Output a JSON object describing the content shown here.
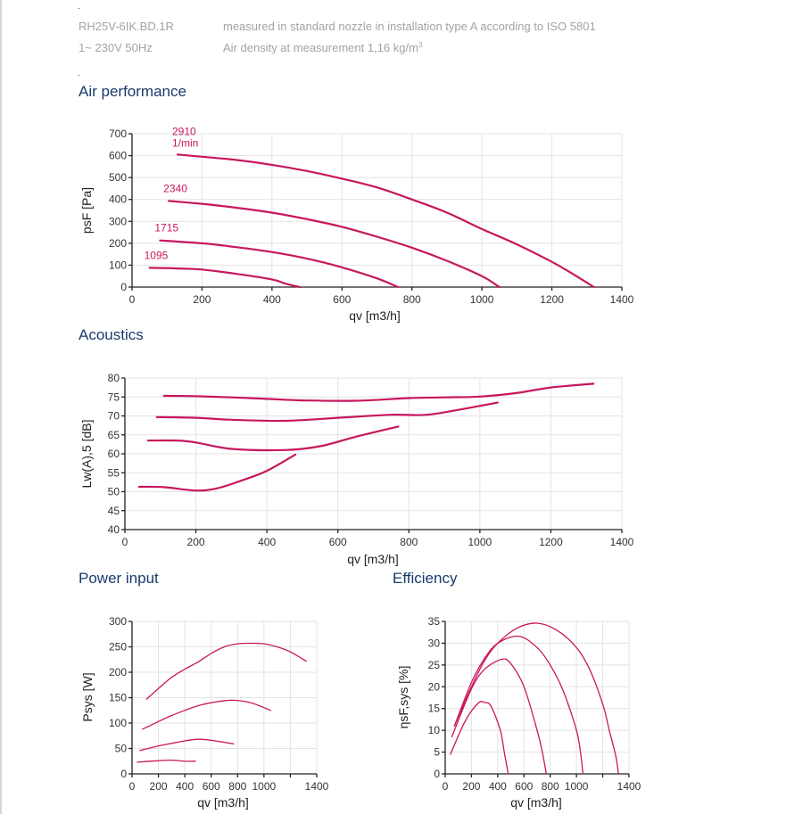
{
  "header": {
    "model": "RH25V-6IK.BD.1R",
    "supply": "1~ 230V 50Hz",
    "measurement_note": "measured in standard nozzle in installation type A according to ISO 5801",
    "air_density_note": "Air density at measurement 1,16 kg/m",
    "air_density_sup": "3"
  },
  "sections": {
    "air_performance": "Air performance",
    "acoustics": "Acoustics",
    "power_input": "Power input",
    "efficiency": "Efficiency"
  },
  "colors": {
    "curve": "#c8175d",
    "title": "#1a3a6e",
    "grid": "#e3e3e3"
  },
  "chart_data": [
    {
      "id": "air_performance",
      "type": "line",
      "title": "Air performance",
      "xlabel": "qv [m3/h]",
      "ylabel": "psF [Pa]",
      "xlim": [
        0,
        1400
      ],
      "ylim": [
        0,
        700
      ],
      "xticks": [
        0,
        200,
        400,
        600,
        800,
        1000,
        1200,
        1400
      ],
      "yticks": [
        0,
        100,
        200,
        300,
        400,
        500,
        600,
        700
      ],
      "grid": true,
      "unit_label": "1/min",
      "series": [
        {
          "name": "2910",
          "points": [
            [
              130,
              605
            ],
            [
              200,
              595
            ],
            [
              300,
              580
            ],
            [
              400,
              558
            ],
            [
              500,
              530
            ],
            [
              600,
              495
            ],
            [
              700,
              455
            ],
            [
              800,
              400
            ],
            [
              900,
              340
            ],
            [
              1000,
              265
            ],
            [
              1100,
              195
            ],
            [
              1200,
              115
            ],
            [
              1260,
              60
            ],
            [
              1320,
              0
            ]
          ]
        },
        {
          "name": "2340",
          "points": [
            [
              105,
              393
            ],
            [
              200,
              380
            ],
            [
              300,
              362
            ],
            [
              400,
              340
            ],
            [
              500,
              310
            ],
            [
              600,
              275
            ],
            [
              700,
              230
            ],
            [
              800,
              180
            ],
            [
              900,
              120
            ],
            [
              1000,
              50
            ],
            [
              1050,
              0
            ]
          ]
        },
        {
          "name": "1715",
          "points": [
            [
              80,
              213
            ],
            [
              200,
              200
            ],
            [
              300,
              182
            ],
            [
              400,
              160
            ],
            [
              500,
              130
            ],
            [
              600,
              90
            ],
            [
              700,
              40
            ],
            [
              760,
              0
            ]
          ]
        },
        {
          "name": "1095",
          "points": [
            [
              50,
              88
            ],
            [
              150,
              84
            ],
            [
              200,
              80
            ],
            [
              300,
              60
            ],
            [
              400,
              35
            ],
            [
              440,
              15
            ],
            [
              480,
              0
            ]
          ]
        }
      ]
    },
    {
      "id": "acoustics",
      "type": "line",
      "title": "Acoustics",
      "xlabel": "qv [m3/h]",
      "ylabel": "Lw(A),5 [dB]",
      "xlim": [
        0,
        1400
      ],
      "ylim": [
        40,
        80
      ],
      "xticks": [
        0,
        200,
        400,
        600,
        800,
        1000,
        1200,
        1400
      ],
      "yticks": [
        40,
        45,
        50,
        55,
        60,
        65,
        70,
        75,
        80
      ],
      "grid": true,
      "series": [
        {
          "name": "2910",
          "points": [
            [
              110,
              75.3
            ],
            [
              200,
              75.2
            ],
            [
              300,
              74.9
            ],
            [
              400,
              74.5
            ],
            [
              500,
              74.1
            ],
            [
              650,
              74.0
            ],
            [
              800,
              74.7
            ],
            [
              900,
              74.9
            ],
            [
              1000,
              75.1
            ],
            [
              1100,
              76.0
            ],
            [
              1200,
              77.5
            ],
            [
              1320,
              78.5
            ]
          ]
        },
        {
          "name": "2340",
          "points": [
            [
              90,
              69.7
            ],
            [
              200,
              69.5
            ],
            [
              300,
              69.0
            ],
            [
              450,
              68.7
            ],
            [
              600,
              69.5
            ],
            [
              750,
              70.3
            ],
            [
              850,
              70.3
            ],
            [
              950,
              71.8
            ],
            [
              1050,
              73.5
            ]
          ]
        },
        {
          "name": "1715",
          "points": [
            [
              65,
              63.5
            ],
            [
              150,
              63.5
            ],
            [
              200,
              63.0
            ],
            [
              300,
              61.3
            ],
            [
              450,
              61.0
            ],
            [
              550,
              62.0
            ],
            [
              650,
              64.5
            ],
            [
              770,
              67.2
            ]
          ]
        },
        {
          "name": "1095",
          "points": [
            [
              40,
              51.3
            ],
            [
              110,
              51.2
            ],
            [
              200,
              50.3
            ],
            [
              260,
              50.9
            ],
            [
              330,
              53.0
            ],
            [
              400,
              55.5
            ],
            [
              480,
              59.8
            ]
          ]
        }
      ]
    },
    {
      "id": "power_input",
      "type": "line",
      "title": "Power input",
      "xlabel": "qv [m3/h]",
      "ylabel": "Psys [W]",
      "xlim": [
        0,
        1400
      ],
      "ylim": [
        0,
        300
      ],
      "xticks": [
        0,
        200,
        400,
        600,
        800,
        1000,
        1400
      ],
      "xticks_unlabeled": [
        1200
      ],
      "yticks": [
        0,
        50,
        100,
        150,
        200,
        250,
        300
      ],
      "grid": true,
      "series": [
        {
          "name": "2910",
          "points": [
            [
              110,
              147
            ],
            [
              200,
              168
            ],
            [
              300,
              190
            ],
            [
              400,
              206
            ],
            [
              500,
              220
            ],
            [
              600,
              237
            ],
            [
              700,
              250
            ],
            [
              800,
              256
            ],
            [
              900,
              257
            ],
            [
              1000,
              256
            ],
            [
              1100,
              250
            ],
            [
              1200,
              240
            ],
            [
              1320,
              222
            ]
          ]
        },
        {
          "name": "2340",
          "points": [
            [
              80,
              88
            ],
            [
              200,
              103
            ],
            [
              300,
              115
            ],
            [
              400,
              125
            ],
            [
              500,
              134
            ],
            [
              600,
              140
            ],
            [
              750,
              145
            ],
            [
              900,
              140
            ],
            [
              1050,
              125
            ]
          ]
        },
        {
          "name": "1715",
          "points": [
            [
              60,
              46
            ],
            [
              200,
              55
            ],
            [
              300,
              60
            ],
            [
              400,
              65
            ],
            [
              500,
              68
            ],
            [
              600,
              66
            ],
            [
              770,
              59
            ]
          ]
        },
        {
          "name": "1095",
          "points": [
            [
              40,
              23
            ],
            [
              200,
              26
            ],
            [
              300,
              27
            ],
            [
              400,
              25
            ],
            [
              480,
              25
            ]
          ]
        }
      ]
    },
    {
      "id": "efficiency",
      "type": "line",
      "title": "Efficiency",
      "xlabel": "qv [m3/h]",
      "ylabel": "ηsF,sys [%]",
      "xlim": [
        0,
        1400
      ],
      "ylim": [
        0,
        35
      ],
      "xticks": [
        0,
        200,
        400,
        600,
        800,
        1000,
        1400
      ],
      "xticks_unlabeled": [
        1200
      ],
      "yticks": [
        0,
        5,
        10,
        15,
        20,
        25,
        30,
        35
      ],
      "grid": true,
      "series": [
        {
          "name": "2910",
          "points": [
            [
              70,
              11
            ],
            [
              200,
              20
            ],
            [
              300,
              26
            ],
            [
              400,
              30
            ],
            [
              550,
              33.5
            ],
            [
              700,
              34.6
            ],
            [
              850,
              33
            ],
            [
              1000,
              29
            ],
            [
              1100,
              24
            ],
            [
              1200,
              16
            ],
            [
              1250,
              10
            ],
            [
              1300,
              4
            ],
            [
              1320,
              0
            ]
          ]
        },
        {
          "name": "2340",
          "points": [
            [
              70,
              11
            ],
            [
              200,
              21
            ],
            [
              300,
              26.5
            ],
            [
              400,
              30
            ],
            [
              560,
              31.6
            ],
            [
              700,
              29
            ],
            [
              800,
              25
            ],
            [
              900,
              19
            ],
            [
              1000,
              10
            ],
            [
              1030,
              5
            ],
            [
              1050,
              0
            ]
          ]
        },
        {
          "name": "1715",
          "points": [
            [
              50,
              8.5
            ],
            [
              200,
              19.5
            ],
            [
              300,
              24
            ],
            [
              430,
              26.3
            ],
            [
              500,
              25.3
            ],
            [
              600,
              20
            ],
            [
              700,
              10
            ],
            [
              740,
              5
            ],
            [
              770,
              0
            ]
          ]
        },
        {
          "name": "1095",
          "points": [
            [
              40,
              4.5
            ],
            [
              150,
              12
            ],
            [
              250,
              16.2
            ],
            [
              300,
              16.4
            ],
            [
              350,
              15.5
            ],
            [
              420,
              10
            ],
            [
              450,
              5
            ],
            [
              480,
              0
            ]
          ]
        }
      ]
    }
  ]
}
